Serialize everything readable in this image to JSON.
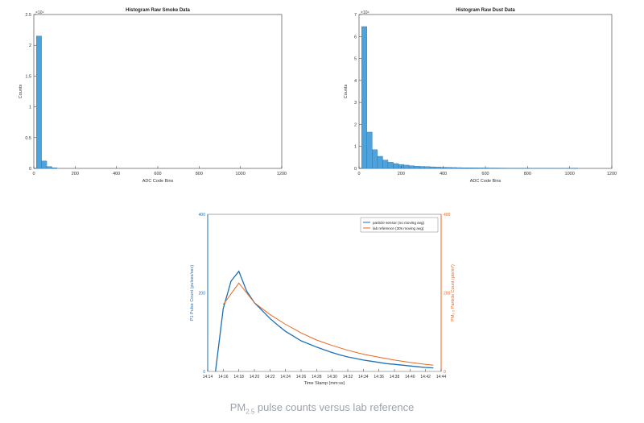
{
  "chart_data": [
    {
      "type": "bar",
      "title": "Histogram Raw Smoke Data",
      "xlabel": "ADC Code Bins",
      "ylabel": "Counts",
      "exponent_label": "×10⁴",
      "xlim": [
        0,
        1200
      ],
      "ylim": [
        0,
        2.5
      ],
      "xticks": [
        0,
        200,
        400,
        600,
        800,
        1000,
        1200
      ],
      "yticks": [
        0,
        0.5,
        1,
        1.5,
        2,
        2.5
      ],
      "bin_width": 25,
      "bins_start": [
        25,
        50,
        75,
        100
      ],
      "values": [
        2.15,
        0.12,
        0.03,
        0.01
      ],
      "bar_color": "#4fa3dc"
    },
    {
      "type": "bar",
      "title": "Histogram Raw Dust Data",
      "xlabel": "ADC Code Bins",
      "ylabel": "Counts",
      "exponent_label": "×10⁴",
      "xlim": [
        0,
        1200
      ],
      "ylim": [
        0,
        7
      ],
      "xticks": [
        0,
        200,
        400,
        600,
        800,
        1000,
        1200
      ],
      "yticks": [
        0,
        1,
        2,
        3,
        4,
        5,
        6,
        7
      ],
      "bin_width": 25,
      "bins_start": [
        25,
        50,
        75,
        100,
        125,
        150,
        175,
        200,
        225,
        250,
        275,
        300,
        325,
        350,
        375,
        400,
        425,
        450,
        475,
        500,
        525,
        550,
        575,
        600,
        625,
        650,
        675,
        700,
        725,
        750,
        775,
        800,
        825,
        850,
        875,
        900,
        925,
        950,
        975,
        1000,
        1025
      ],
      "values": [
        6.45,
        1.65,
        0.85,
        0.55,
        0.38,
        0.28,
        0.22,
        0.18,
        0.15,
        0.12,
        0.1,
        0.09,
        0.08,
        0.07,
        0.06,
        0.05,
        0.045,
        0.04,
        0.035,
        0.03,
        0.028,
        0.025,
        0.022,
        0.02,
        0.018,
        0.016,
        0.014,
        0.012,
        0.011,
        0.01,
        0.009,
        0.008,
        0.007,
        0.006,
        0.006,
        0.005,
        0.005,
        0.004,
        0.004,
        0.01,
        0.012
      ],
      "bar_color": "#4fa3dc"
    },
    {
      "type": "line",
      "xlabel": "Time Stamp (mm:ss)",
      "ylabel": "P1 Pulse Count (pulses/sec)",
      "ylabel_right": "PM₂.₅ Particle Count (pts/m³)",
      "xlim": [
        "14:14",
        "14:44"
      ],
      "ylim": [
        0,
        400
      ],
      "ylim_right": [
        0,
        400
      ],
      "xticks": [
        "14:14",
        "14:16",
        "14:18",
        "14:20",
        "14:22",
        "14:24",
        "14:26",
        "14:28",
        "14:30",
        "14:32",
        "14:34",
        "14:36",
        "14:38",
        "14:40",
        "14:42",
        "14:44"
      ],
      "yticks": [
        0,
        200,
        400
      ],
      "yticks_right": [
        0,
        200,
        400
      ],
      "legend_position": "top-right",
      "series": [
        {
          "name": "particle sensor (no moving avg)",
          "color": "#1f6fb5",
          "x": [
            "14:15",
            "14:16",
            "14:17",
            "14:18",
            "14:19",
            "14:20",
            "14:21",
            "14:22",
            "14:23",
            "14:24",
            "14:25",
            "14:26",
            "14:27",
            "14:28",
            "14:29",
            "14:30",
            "14:31",
            "14:32",
            "14:33",
            "14:34",
            "14:35",
            "14:36",
            "14:37",
            "14:38",
            "14:39",
            "14:40",
            "14:41",
            "14:42",
            "14:43"
          ],
          "values": [
            0,
            160,
            230,
            255,
            205,
            175,
            155,
            135,
            118,
            102,
            90,
            78,
            70,
            62,
            55,
            48,
            42,
            37,
            33,
            29,
            26,
            23,
            20,
            18,
            16,
            14,
            12,
            10,
            9
          ]
        },
        {
          "name": "lab reference (30s moving avg)",
          "color": "#e8661f",
          "x": [
            "14:16",
            "14:18",
            "14:20",
            "14:22",
            "14:24",
            "14:26",
            "14:28",
            "14:30",
            "14:32",
            "14:34",
            "14:36",
            "14:38",
            "14:40",
            "14:42",
            "14:43"
          ],
          "values": [
            170,
            225,
            175,
            145,
            120,
            98,
            80,
            66,
            54,
            44,
            36,
            29,
            23,
            18,
            16
          ]
        }
      ]
    }
  ],
  "caption": {
    "prefix": "PM",
    "subscript": "2.5",
    "text": " pulse counts versus lab reference"
  }
}
